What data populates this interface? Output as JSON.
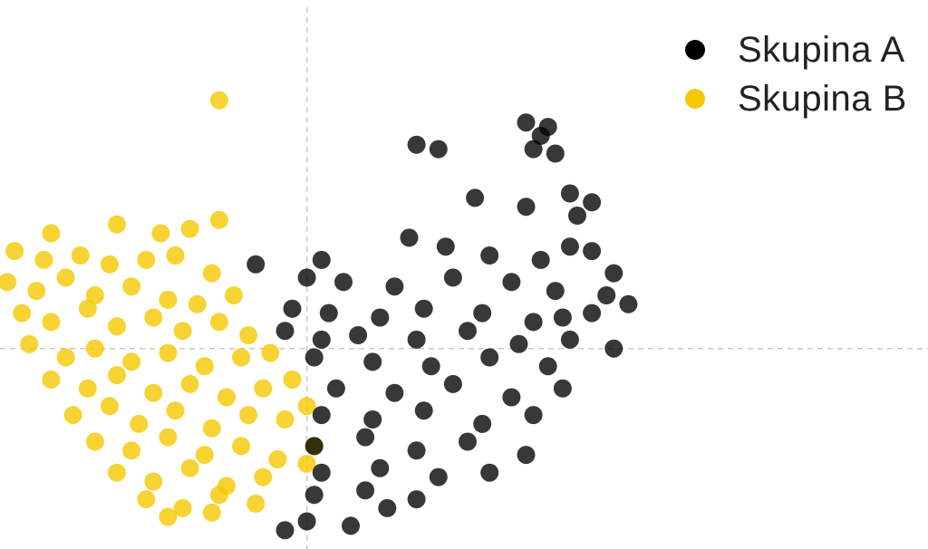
{
  "chart_data": {
    "type": "scatter",
    "title": "",
    "xlabel": "",
    "ylabel": "",
    "xlim": [
      -4.2,
      8.5
    ],
    "ylim": [
      -4.4,
      7.7
    ],
    "grid": false,
    "reference_lines": {
      "x": 0,
      "y": 0,
      "style": "dashed"
    },
    "legend_position": "top-right",
    "series": [
      {
        "name": "Skupina A",
        "color": "#000000",
        "cluster_center": [
          1.8,
          0.3
        ],
        "points": [
          [
            3.0,
            5.1
          ],
          [
            3.3,
            5.0
          ],
          [
            3.2,
            4.8
          ],
          [
            3.1,
            4.5
          ],
          [
            3.4,
            4.4
          ],
          [
            1.5,
            4.6
          ],
          [
            1.8,
            4.5
          ],
          [
            3.6,
            3.5
          ],
          [
            3.9,
            3.3
          ],
          [
            3.7,
            3.0
          ],
          [
            2.3,
            3.4
          ],
          [
            3.0,
            3.2
          ],
          [
            1.4,
            2.5
          ],
          [
            1.9,
            2.3
          ],
          [
            2.5,
            2.1
          ],
          [
            3.2,
            2.0
          ],
          [
            3.6,
            2.3
          ],
          [
            3.9,
            2.2
          ],
          [
            4.2,
            1.7
          ],
          [
            0.2,
            2.0
          ],
          [
            -0.7,
            1.9
          ],
          [
            0.0,
            1.6
          ],
          [
            0.5,
            1.5
          ],
          [
            1.2,
            1.4
          ],
          [
            2.0,
            1.6
          ],
          [
            2.8,
            1.5
          ],
          [
            3.4,
            1.3
          ],
          [
            4.1,
            1.2
          ],
          [
            4.4,
            1.0
          ],
          [
            3.9,
            0.8
          ],
          [
            3.5,
            0.7
          ],
          [
            -0.2,
            0.9
          ],
          [
            0.3,
            0.8
          ],
          [
            1.0,
            0.7
          ],
          [
            1.6,
            0.9
          ],
          [
            2.4,
            0.8
          ],
          [
            3.1,
            0.6
          ],
          [
            -0.3,
            0.4
          ],
          [
            0.2,
            0.2
          ],
          [
            0.7,
            0.3
          ],
          [
            1.5,
            0.2
          ],
          [
            2.2,
            0.4
          ],
          [
            2.9,
            0.1
          ],
          [
            3.6,
            0.2
          ],
          [
            0.1,
            -0.2
          ],
          [
            0.9,
            -0.3
          ],
          [
            1.7,
            -0.4
          ],
          [
            2.5,
            -0.2
          ],
          [
            3.3,
            -0.4
          ],
          [
            4.2,
            0.0
          ],
          [
            0.4,
            -0.9
          ],
          [
            1.2,
            -1.0
          ],
          [
            2.0,
            -0.8
          ],
          [
            2.8,
            -1.1
          ],
          [
            3.5,
            -0.9
          ],
          [
            0.2,
            -1.5
          ],
          [
            0.9,
            -1.6
          ],
          [
            1.6,
            -1.4
          ],
          [
            2.4,
            -1.7
          ],
          [
            3.1,
            -1.5
          ],
          [
            0.1,
            -2.2
          ],
          [
            0.8,
            -2.0
          ],
          [
            1.5,
            -2.3
          ],
          [
            2.2,
            -2.1
          ],
          [
            3.0,
            -2.4
          ],
          [
            0.2,
            -2.8
          ],
          [
            1.0,
            -2.7
          ],
          [
            1.8,
            -2.9
          ],
          [
            2.5,
            -2.8
          ],
          [
            0.1,
            -3.3
          ],
          [
            0.8,
            -3.2
          ],
          [
            1.5,
            -3.4
          ],
          [
            0.0,
            -3.9
          ],
          [
            1.1,
            -3.6
          ],
          [
            0.6,
            -4.0
          ],
          [
            -0.3,
            -4.1
          ]
        ]
      },
      {
        "name": "Skupina B",
        "color": "#f5c800",
        "cluster_center": [
          -2.2,
          -0.4
        ],
        "points": [
          [
            -1.2,
            5.6
          ],
          [
            -1.2,
            2.9
          ],
          [
            -3.5,
            2.6
          ],
          [
            -2.6,
            2.8
          ],
          [
            -2.0,
            2.6
          ],
          [
            -1.6,
            2.7
          ],
          [
            -4.0,
            2.2
          ],
          [
            -3.6,
            2.0
          ],
          [
            -3.1,
            2.1
          ],
          [
            -2.7,
            1.9
          ],
          [
            -2.2,
            2.0
          ],
          [
            -1.8,
            2.1
          ],
          [
            -1.3,
            1.7
          ],
          [
            -4.1,
            1.5
          ],
          [
            -3.7,
            1.3
          ],
          [
            -3.3,
            1.6
          ],
          [
            -2.9,
            1.2
          ],
          [
            -2.4,
            1.4
          ],
          [
            -1.9,
            1.1
          ],
          [
            -1.5,
            1.0
          ],
          [
            -1.0,
            1.2
          ],
          [
            -3.9,
            0.8
          ],
          [
            -3.5,
            0.6
          ],
          [
            -3.0,
            0.9
          ],
          [
            -2.6,
            0.5
          ],
          [
            -2.1,
            0.7
          ],
          [
            -1.7,
            0.4
          ],
          [
            -1.2,
            0.6
          ],
          [
            -0.8,
            0.3
          ],
          [
            -3.8,
            0.1
          ],
          [
            -3.3,
            -0.2
          ],
          [
            -2.9,
            0.0
          ],
          [
            -2.4,
            -0.3
          ],
          [
            -1.9,
            -0.1
          ],
          [
            -1.4,
            -0.4
          ],
          [
            -0.9,
            -0.2
          ],
          [
            -0.5,
            -0.1
          ],
          [
            -3.5,
            -0.7
          ],
          [
            -3.0,
            -0.9
          ],
          [
            -2.6,
            -0.6
          ],
          [
            -2.1,
            -1.0
          ],
          [
            -1.6,
            -0.8
          ],
          [
            -1.1,
            -1.1
          ],
          [
            -0.6,
            -0.9
          ],
          [
            -0.2,
            -0.7
          ],
          [
            -3.2,
            -1.5
          ],
          [
            -2.7,
            -1.3
          ],
          [
            -2.3,
            -1.7
          ],
          [
            -1.8,
            -1.4
          ],
          [
            -1.3,
            -1.8
          ],
          [
            -0.8,
            -1.5
          ],
          [
            -0.3,
            -1.6
          ],
          [
            0.0,
            -1.3
          ],
          [
            -2.9,
            -2.1
          ],
          [
            -2.4,
            -2.3
          ],
          [
            -1.9,
            -2.0
          ],
          [
            -1.4,
            -2.4
          ],
          [
            -0.9,
            -2.2
          ],
          [
            -0.4,
            -2.5
          ],
          [
            0.1,
            -2.2
          ],
          [
            -2.6,
            -2.8
          ],
          [
            -2.1,
            -3.0
          ],
          [
            -1.6,
            -2.7
          ],
          [
            -1.1,
            -3.1
          ],
          [
            -0.6,
            -2.9
          ],
          [
            0.0,
            -2.6
          ],
          [
            -2.2,
            -3.4
          ],
          [
            -1.7,
            -3.6
          ],
          [
            -1.2,
            -3.3
          ],
          [
            -0.7,
            -3.5
          ],
          [
            -1.9,
            -3.8
          ],
          [
            -1.3,
            -3.7
          ]
        ]
      }
    ]
  }
}
